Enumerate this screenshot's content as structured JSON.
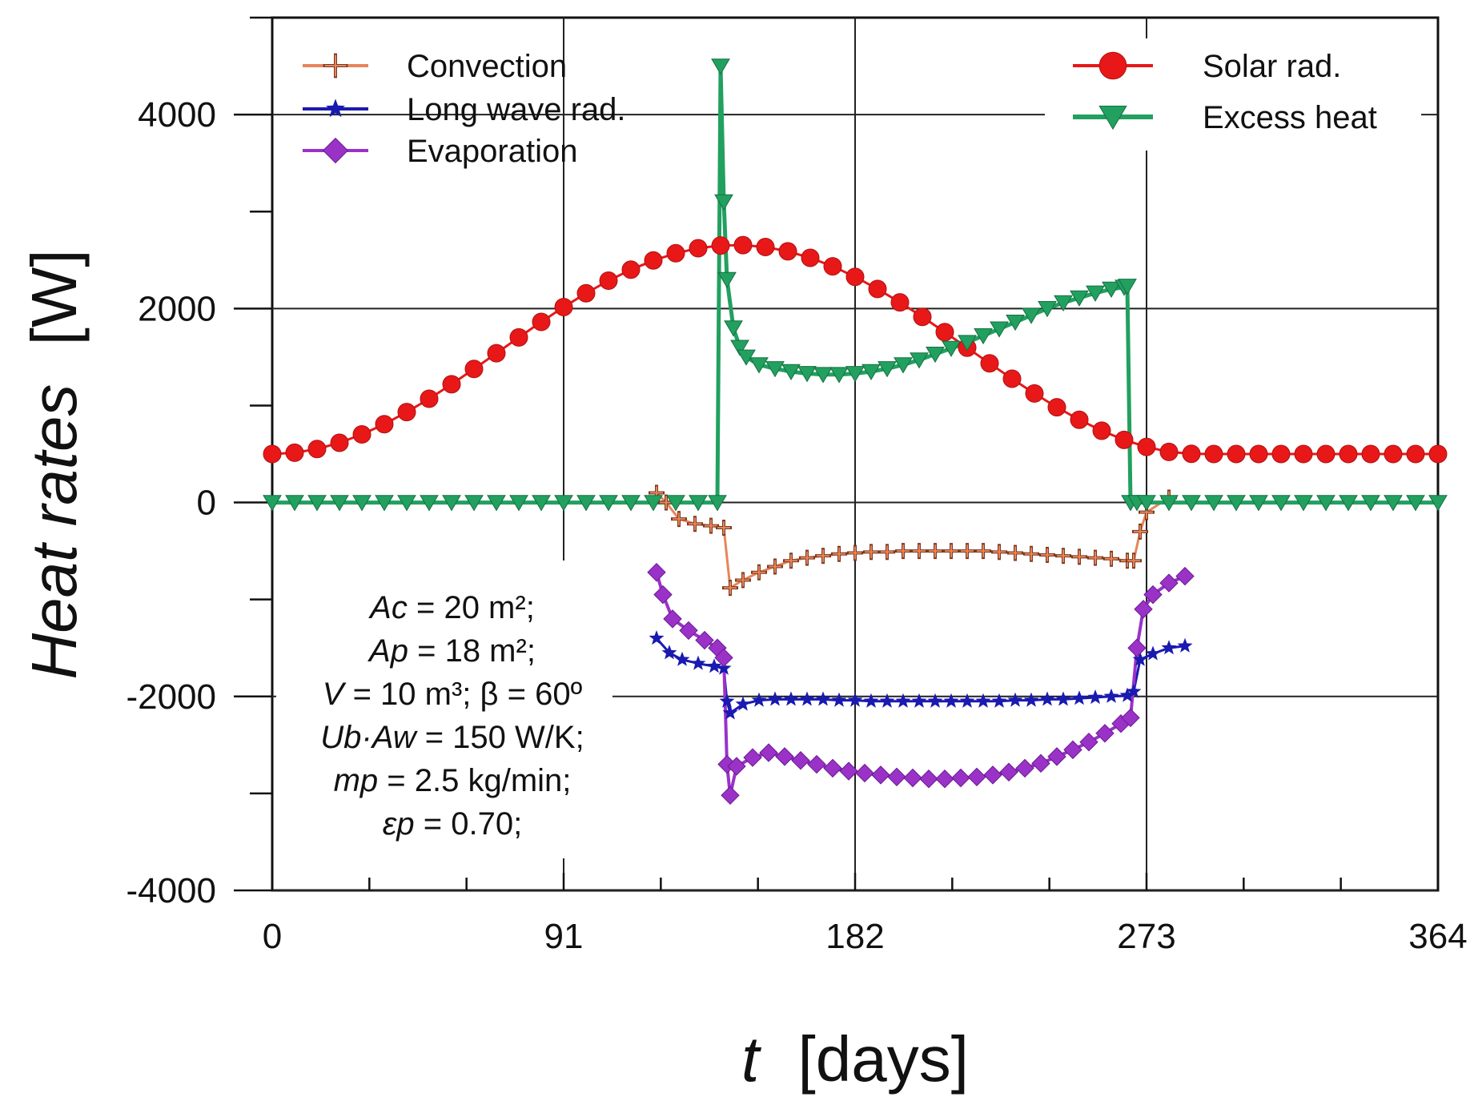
{
  "chart_data": {
    "type": "line",
    "title": "",
    "xlabel": {
      "var": "t",
      "unit": "[days]"
    },
    "ylabel": {
      "var": "Heat rates",
      "unit": "[W]"
    },
    "xlim": [
      0,
      364
    ],
    "ylim": [
      -4000,
      5000
    ],
    "xticks": [
      0,
      91,
      182,
      273,
      364
    ],
    "yticks": [
      -4000,
      -2000,
      0,
      2000,
      4000
    ],
    "grid": true,
    "series": [
      {
        "name": "Convection",
        "color": "#e8845a",
        "marker": "plus",
        "x": [
          120,
          123,
          127,
          132,
          137,
          141,
          143,
          147,
          152,
          157,
          162,
          167,
          172,
          177,
          182,
          187,
          192,
          197,
          202,
          207,
          212,
          217,
          222,
          227,
          232,
          237,
          242,
          247,
          252,
          257,
          262,
          267,
          269,
          271,
          273,
          280
        ],
        "y": [
          100,
          0,
          -170,
          -220,
          -240,
          -260,
          -880,
          -800,
          -720,
          -660,
          -600,
          -570,
          -550,
          -530,
          -520,
          -510,
          -510,
          -500,
          -500,
          -500,
          -500,
          -500,
          -500,
          -510,
          -520,
          -530,
          -540,
          -550,
          -560,
          -570,
          -580,
          -600,
          -600,
          -300,
          -100,
          50
        ]
      },
      {
        "name": "Long wave rad.",
        "color": "#1a1ab0",
        "marker": "star",
        "x": [
          120,
          124,
          128,
          133,
          138,
          141,
          142,
          143,
          147,
          152,
          157,
          162,
          167,
          172,
          177,
          182,
          187,
          192,
          197,
          202,
          207,
          212,
          217,
          222,
          227,
          232,
          237,
          242,
          247,
          252,
          257,
          262,
          267,
          269,
          271,
          275,
          280,
          285
        ],
        "y": [
          -1400,
          -1550,
          -1620,
          -1660,
          -1690,
          -1710,
          -2050,
          -2170,
          -2080,
          -2040,
          -2030,
          -2030,
          -2030,
          -2030,
          -2040,
          -2040,
          -2050,
          -2050,
          -2050,
          -2050,
          -2050,
          -2050,
          -2050,
          -2050,
          -2050,
          -2040,
          -2040,
          -2030,
          -2030,
          -2020,
          -2010,
          -2000,
          -1990,
          -1950,
          -1620,
          -1560,
          -1500,
          -1480
        ]
      },
      {
        "name": "Evaporation",
        "color": "#9a32c8",
        "marker": "diamond",
        "x": [
          120,
          122,
          125,
          130,
          135,
          139,
          141,
          142,
          143,
          145,
          150,
          155,
          160,
          165,
          170,
          175,
          180,
          185,
          190,
          195,
          200,
          205,
          210,
          215,
          220,
          225,
          230,
          235,
          240,
          245,
          250,
          255,
          260,
          265,
          268,
          270,
          272,
          275,
          280,
          285
        ],
        "y": [
          -720,
          -950,
          -1200,
          -1320,
          -1420,
          -1500,
          -1600,
          -2700,
          -3020,
          -2720,
          -2630,
          -2580,
          -2620,
          -2660,
          -2700,
          -2740,
          -2770,
          -2790,
          -2810,
          -2830,
          -2840,
          -2850,
          -2850,
          -2840,
          -2830,
          -2810,
          -2780,
          -2740,
          -2690,
          -2620,
          -2550,
          -2470,
          -2380,
          -2280,
          -2220,
          -1500,
          -1100,
          -950,
          -830,
          -760
        ]
      },
      {
        "name": "Solar rad.",
        "color": "#e81818",
        "marker": "circle",
        "x": [
          0,
          7,
          14,
          21,
          28,
          35,
          42,
          49,
          56,
          63,
          70,
          77,
          84,
          91,
          98,
          105,
          112,
          119,
          126,
          133,
          140,
          147,
          154,
          161,
          168,
          175,
          182,
          189,
          196,
          203,
          210,
          217,
          224,
          231,
          238,
          245,
          252,
          259,
          266,
          273,
          280,
          287,
          294,
          301,
          308,
          315,
          322,
          329,
          336,
          343,
          350,
          357,
          364
        ],
        "y": [
          500,
          513,
          552,
          616,
          702,
          808,
          932,
          1070,
          1219,
          1377,
          1539,
          1702,
          1862,
          2015,
          2158,
          2288,
          2401,
          2496,
          2570,
          2622,
          2650,
          2654,
          2634,
          2590,
          2523,
          2435,
          2327,
          2202,
          2064,
          1914,
          1757,
          1596,
          1435,
          1276,
          1124,
          982,
          853,
          740,
          646,
          573,
          522,
          502,
          500,
          500,
          500,
          500,
          500,
          500,
          500,
          500,
          500,
          500,
          500
        ]
      },
      {
        "name": "Excess heat",
        "color": "#22a060",
        "marker": "triangle-down",
        "x": [
          0,
          7,
          14,
          21,
          28,
          35,
          42,
          49,
          56,
          63,
          70,
          77,
          84,
          91,
          98,
          105,
          112,
          119,
          126,
          133,
          139,
          140,
          141,
          142,
          144,
          146,
          148,
          152,
          157,
          162,
          167,
          172,
          177,
          182,
          187,
          192,
          197,
          202,
          207,
          212,
          217,
          222,
          227,
          232,
          237,
          242,
          247,
          252,
          257,
          262,
          266,
          267,
          268,
          270,
          273,
          280,
          287,
          294,
          301,
          308,
          315,
          322,
          329,
          336,
          343,
          350,
          357,
          364
        ],
        "y": [
          0,
          0,
          0,
          0,
          0,
          0,
          0,
          0,
          0,
          0,
          0,
          0,
          0,
          0,
          0,
          0,
          0,
          0,
          0,
          0,
          0,
          4500,
          3100,
          2300,
          1800,
          1600,
          1500,
          1420,
          1380,
          1350,
          1330,
          1320,
          1320,
          1330,
          1350,
          1380,
          1420,
          1470,
          1530,
          1590,
          1650,
          1720,
          1790,
          1860,
          1930,
          2000,
          2060,
          2110,
          2160,
          2200,
          2220,
          2230,
          0,
          0,
          0,
          0,
          0,
          0,
          0,
          0,
          0,
          0,
          0,
          0,
          0,
          0,
          0,
          0
        ]
      }
    ],
    "annotation": [
      {
        "var": "Ac",
        "text": " = 20 m²;"
      },
      {
        "var": "Ap",
        "text": " = 18 m²;"
      },
      {
        "var": "V",
        "text": " = 10 m³;  β = 60º"
      },
      {
        "var": "Ub·Aw",
        "text": " = 150 W/K;"
      },
      {
        "var": "mp",
        "text": " = 2.5 kg/min;"
      },
      {
        "var": "εp",
        "text": " = 0.70;"
      }
    ]
  }
}
